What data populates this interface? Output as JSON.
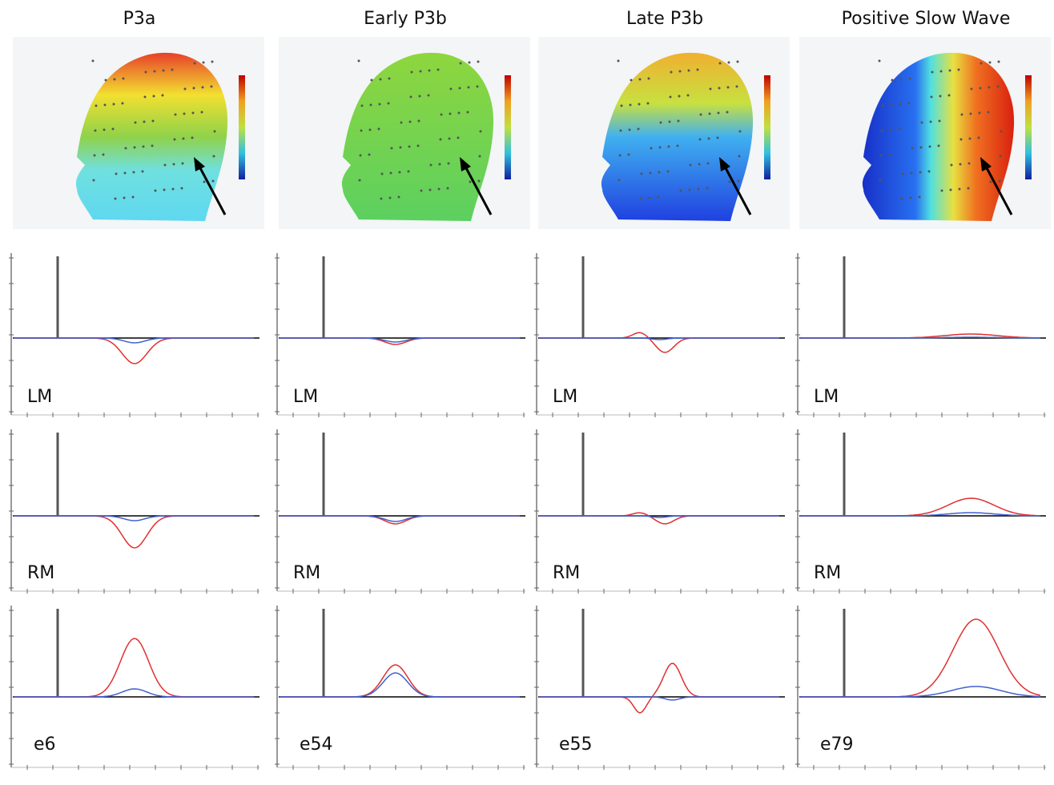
{
  "columns": [
    {
      "title": "P3a",
      "panels": [
        {
          "label": "LM"
        },
        {
          "label": "RM"
        },
        {
          "label": "e6"
        }
      ]
    },
    {
      "title": "Early P3b",
      "panels": [
        {
          "label": "LM"
        },
        {
          "label": "RM"
        },
        {
          "label": "e54"
        }
      ]
    },
    {
      "title": "Late P3b",
      "panels": [
        {
          "label": "LM"
        },
        {
          "label": "RM"
        },
        {
          "label": "e55"
        }
      ]
    },
    {
      "title": "Positive Slow Wave",
      "panels": [
        {
          "label": "LM"
        },
        {
          "label": "RM"
        },
        {
          "label": "e79"
        }
      ]
    }
  ]
}
